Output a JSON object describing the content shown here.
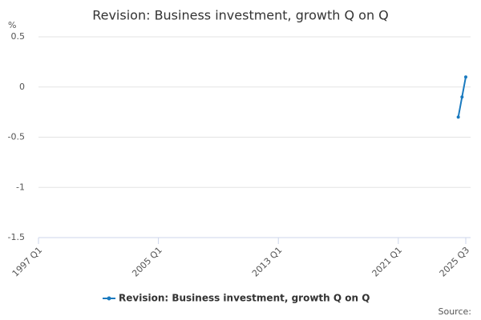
{
  "chart_data": {
    "type": "line",
    "title": "Revision: Business investment, growth Q on Q",
    "y_label": "%",
    "source": "Source:",
    "x": [
      2025.0,
      2025.25,
      2025.5
    ],
    "series": [
      {
        "name": "Revision: Business investment, growth Q on Q",
        "color": "#1a7abf",
        "values": [
          -0.3,
          -0.1,
          0.1
        ]
      }
    ],
    "xlim": [
      1997,
      2025.5
    ],
    "xticks": [
      {
        "value": 1997,
        "label": "1997 Q1"
      },
      {
        "value": 2005,
        "label": "2005 Q1"
      },
      {
        "value": 2013,
        "label": "2013 Q1"
      },
      {
        "value": 2021,
        "label": "2021 Q1"
      },
      {
        "value": 2025.5,
        "label": "2025 Q3"
      }
    ],
    "ylim": [
      -1.5,
      0.5
    ],
    "yticks": [
      0.5,
      0,
      -0.5,
      -1,
      -1.5
    ],
    "grid": true,
    "legend": "bottom"
  }
}
